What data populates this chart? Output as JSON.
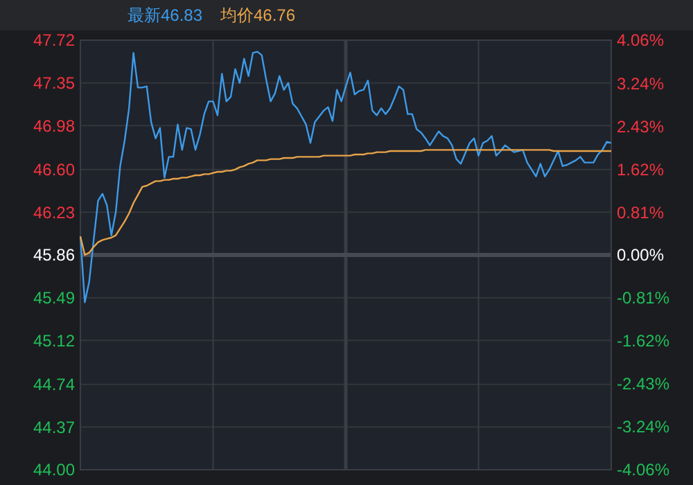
{
  "chart_data": {
    "type": "line",
    "annotations": [
      "最新46.83",
      "均价46.76"
    ],
    "categories": [
      null,
      null,
      null,
      null,
      null,
      null,
      null,
      null,
      null,
      null,
      null,
      null,
      null,
      null,
      null,
      null,
      null,
      null,
      null,
      null,
      null,
      null,
      null,
      null,
      null,
      null,
      null,
      null,
      null,
      null,
      null,
      null,
      null,
      null,
      null,
      null,
      null,
      null,
      null,
      null,
      null,
      null,
      null,
      null,
      null,
      null,
      null,
      null,
      null,
      null,
      null,
      null,
      null,
      null,
      null,
      null,
      null,
      null,
      null,
      null,
      null,
      null,
      null,
      null,
      null,
      null,
      null,
      null,
      null,
      null,
      null,
      null,
      null,
      null,
      null,
      null,
      null,
      null,
      null,
      null,
      null,
      null,
      null,
      null,
      null,
      null,
      null,
      null,
      null,
      null,
      null,
      null,
      null,
      null,
      null,
      null,
      null,
      null,
      null,
      null,
      null,
      null,
      null,
      null,
      null,
      null,
      null,
      null,
      null,
      null,
      null,
      null,
      null,
      null,
      null,
      null,
      null,
      null,
      null,
      null,
      null
    ],
    "series": [
      {
        "color": "#3d9be9",
        "values": [
          46.02,
          45.45,
          45.63,
          45.99,
          46.33,
          46.39,
          46.29,
          46.03,
          46.23,
          46.63,
          46.85,
          47.13,
          47.61,
          47.31,
          47.31,
          47.32,
          47.01,
          46.87,
          46.96,
          46.53,
          46.71,
          46.71,
          46.99,
          46.77,
          46.96,
          46.95,
          46.77,
          46.9,
          47.08,
          47.19,
          47.19,
          47.07,
          47.43,
          47.19,
          47.23,
          47.47,
          47.35,
          47.56,
          47.41,
          47.61,
          47.62,
          47.59,
          47.38,
          47.19,
          47.26,
          47.41,
          47.29,
          47.35,
          47.17,
          47.13,
          47.06,
          46.99,
          46.83,
          47.01,
          47.06,
          47.11,
          47.14,
          47.02,
          47.29,
          47.19,
          47.32,
          47.44,
          47.25,
          47.28,
          47.29,
          47.37,
          47.11,
          47.07,
          47.13,
          47.08,
          47.13,
          47.22,
          47.32,
          47.29,
          47.08,
          47.08,
          46.95,
          46.92,
          46.87,
          46.81,
          46.87,
          46.93,
          46.89,
          46.87,
          46.81,
          46.69,
          46.65,
          46.74,
          46.83,
          46.87,
          46.72,
          46.83,
          46.85,
          46.89,
          46.72,
          46.76,
          46.81,
          46.78,
          46.75,
          46.76,
          46.77,
          46.66,
          46.6,
          46.54,
          46.65,
          46.54,
          46.6,
          46.68,
          46.76,
          46.63,
          46.64,
          46.66,
          46.68,
          46.71,
          46.66,
          46.66,
          46.66,
          46.73,
          46.77,
          46.84,
          46.83
        ]
      },
      {
        "color": "#e8a44a",
        "values": [
          46.02,
          45.86,
          45.88,
          45.93,
          45.97,
          45.99,
          46.0,
          46.01,
          46.03,
          46.09,
          46.15,
          46.22,
          46.31,
          46.38,
          46.45,
          46.46,
          46.48,
          46.5,
          46.5,
          46.51,
          46.51,
          46.52,
          46.52,
          46.53,
          46.53,
          46.54,
          46.55,
          46.55,
          46.56,
          46.56,
          46.57,
          46.58,
          46.58,
          46.59,
          46.59,
          46.6,
          46.62,
          46.63,
          46.65,
          46.66,
          46.68,
          46.68,
          46.68,
          46.69,
          46.69,
          46.69,
          46.7,
          46.7,
          46.7,
          46.71,
          46.71,
          46.71,
          46.71,
          46.71,
          46.71,
          46.72,
          46.72,
          46.72,
          46.72,
          46.72,
          46.72,
          46.72,
          46.73,
          46.73,
          46.73,
          46.74,
          46.74,
          46.75,
          46.75,
          46.75,
          46.76,
          46.76,
          46.76,
          46.76,
          46.76,
          46.76,
          46.76,
          46.76,
          46.77,
          46.77,
          46.77,
          46.77,
          46.77,
          46.77,
          46.77,
          46.77,
          46.77,
          46.77,
          46.77,
          46.77,
          46.77,
          46.77,
          46.77,
          46.77,
          46.77,
          46.77,
          46.77,
          46.77,
          46.77,
          46.77,
          46.77,
          46.77,
          46.77,
          46.77,
          46.77,
          46.77,
          46.77,
          46.76,
          46.76,
          46.76,
          46.76,
          46.76,
          46.76,
          46.76,
          46.76,
          46.76,
          46.76,
          46.76,
          46.76,
          46.76,
          46.76
        ]
      }
    ],
    "ylim": [
      44.0,
      47.72
    ],
    "yticks": [
      {
        "value": 44.0,
        "label": "44.00"
      },
      44.37,
      44.74,
      45.12,
      45.49,
      45.86,
      46.23,
      {
        "value": 46.6,
        "label": "46.60"
      },
      46.98,
      47.35,
      47.72
    ],
    "y2lim": [
      -4.06,
      4.06
    ],
    "y2ticks": [
      {
        "value": -4.06,
        "label": "-4.06%"
      },
      {
        "value": -3.24,
        "label": "-3.24%"
      },
      {
        "value": -2.43,
        "label": "-2.43%"
      },
      {
        "value": -1.62,
        "label": "-1.62%"
      },
      {
        "value": -0.81,
        "label": "-0.81%"
      },
      {
        "value": 0,
        "label": "0.00%"
      },
      {
        "value": 0.81,
        "label": "0.81%"
      },
      {
        "value": 1.62,
        "label": "1.62%"
      },
      {
        "value": 2.43,
        "label": "2.43%"
      },
      {
        "value": 3.24,
        "label": "3.24%"
      },
      {
        "value": 4.06,
        "label": "4.06%"
      }
    ],
    "ref_lines": [
      {
        "axis": "y",
        "value": 45.86,
        "color": "#464a52"
      }
    ],
    "grid": true
  }
}
